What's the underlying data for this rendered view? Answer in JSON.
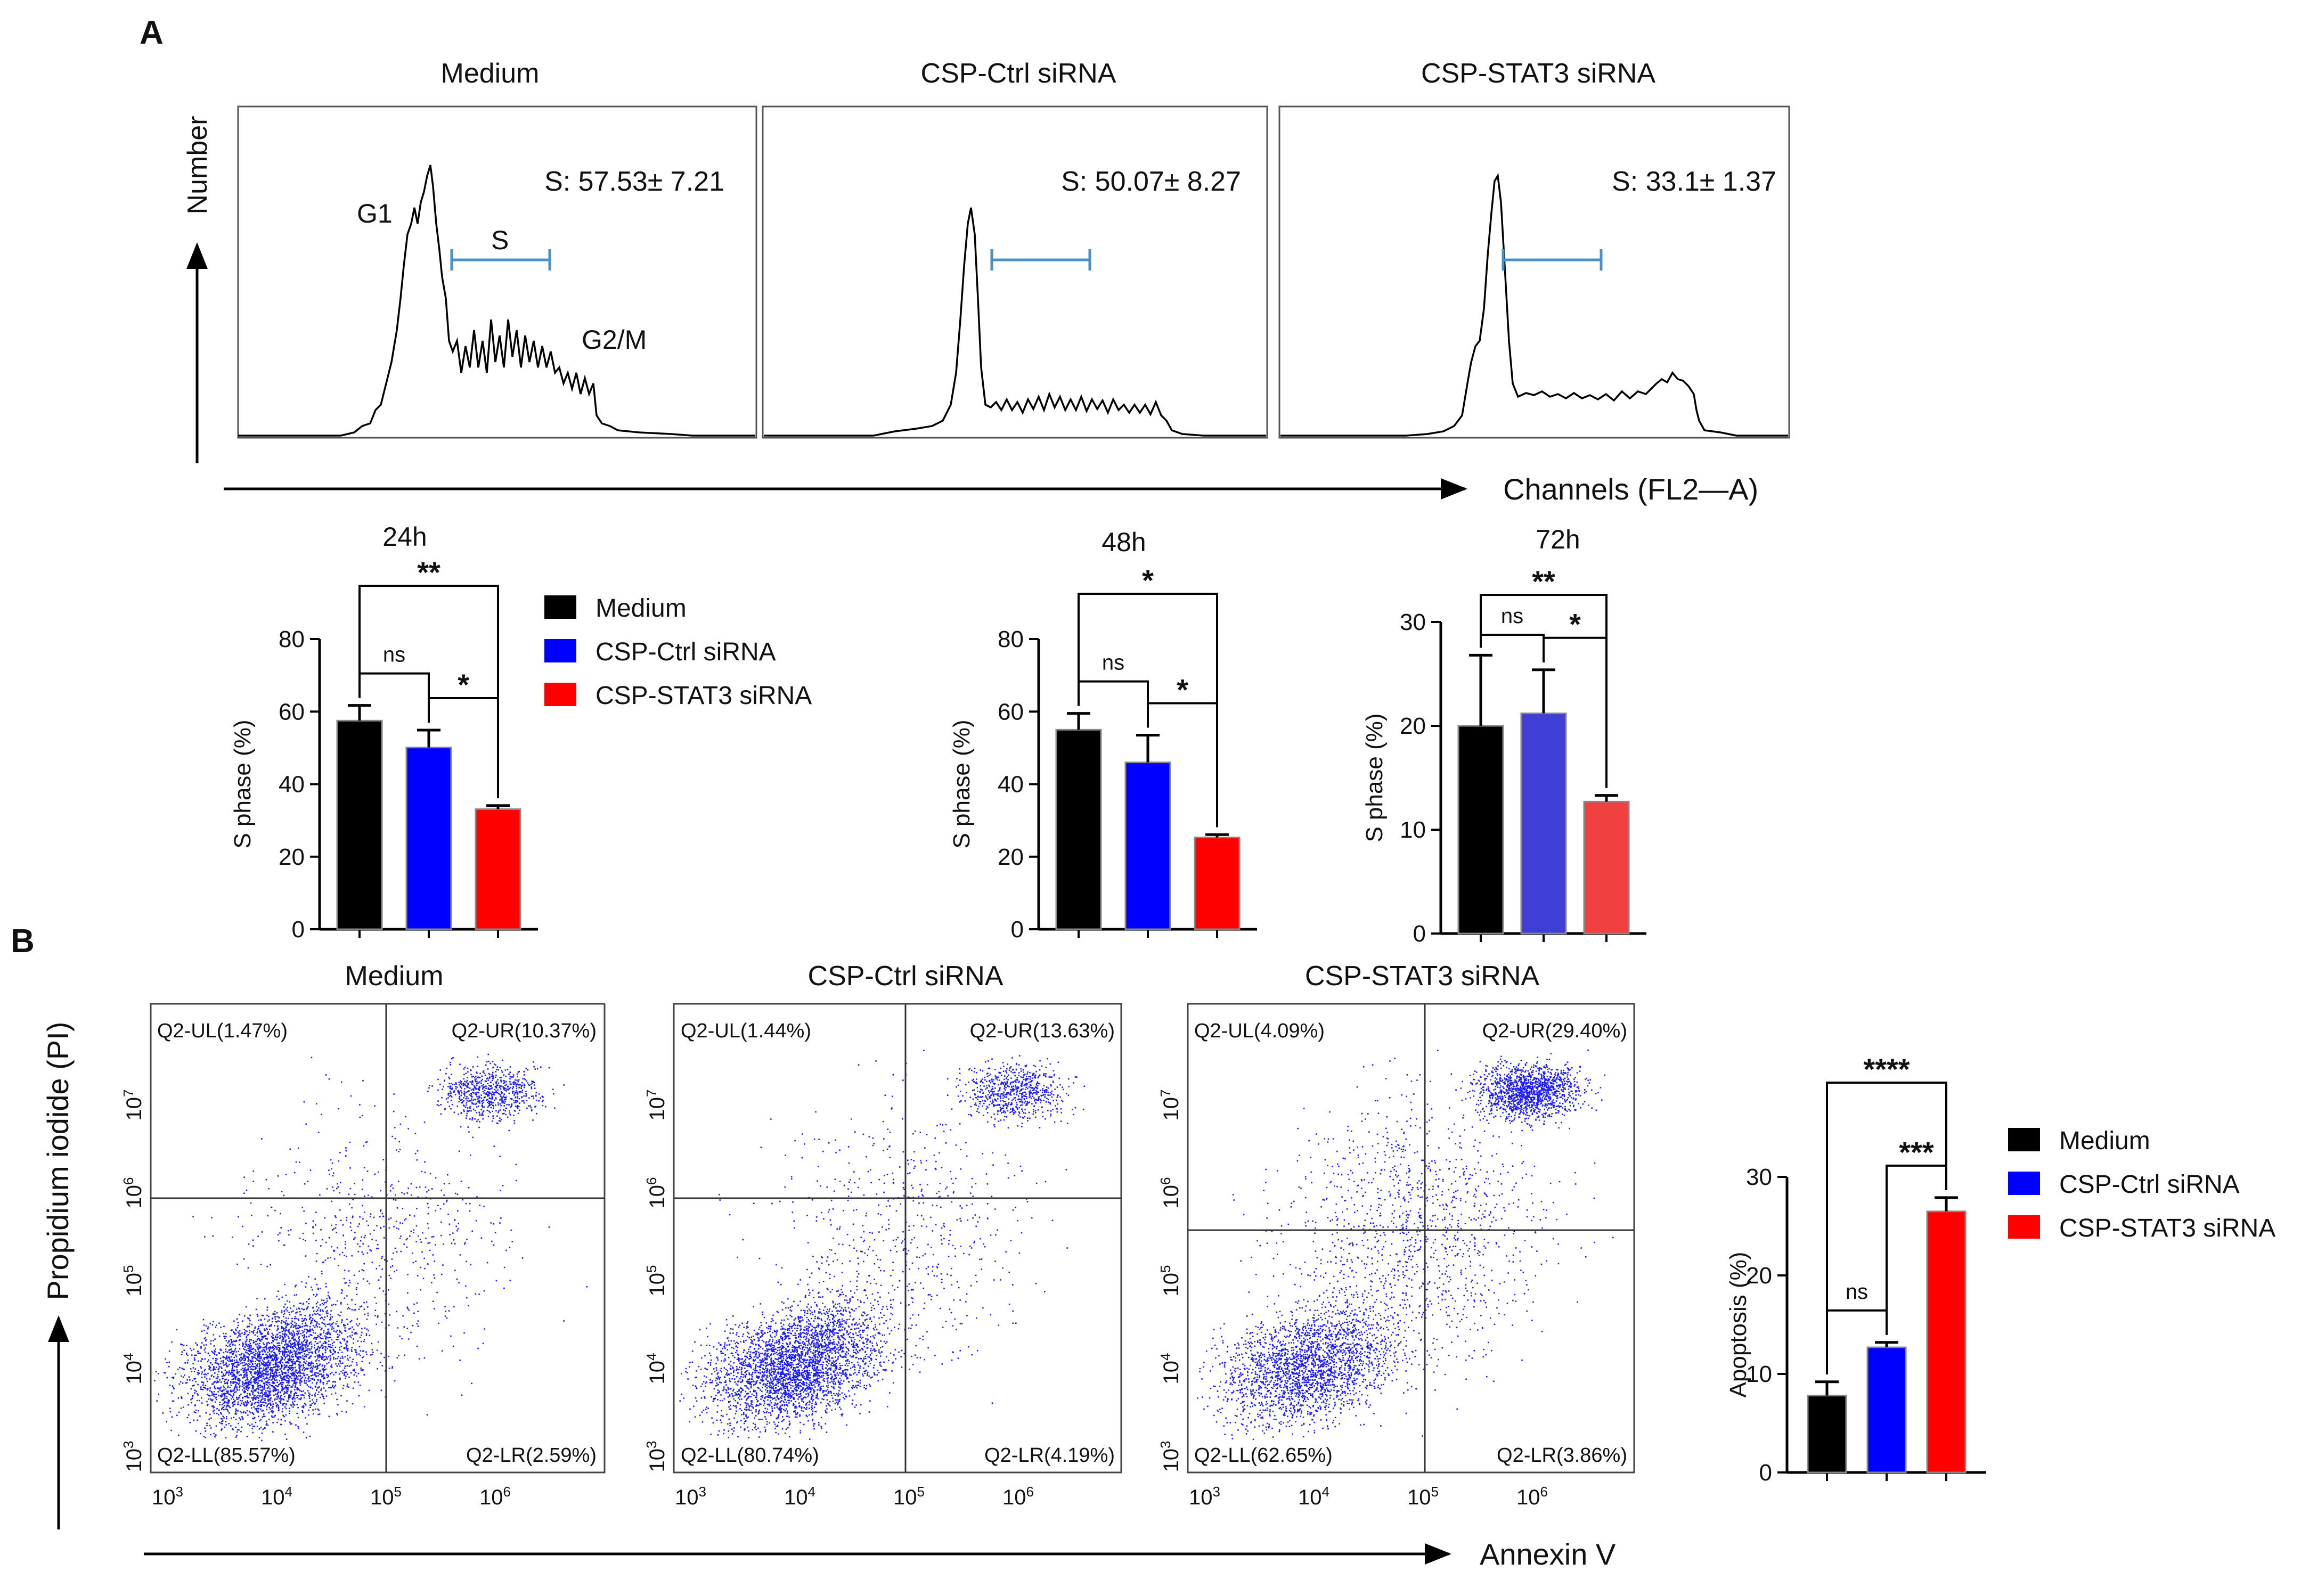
{
  "panel_a": {
    "label": "A",
    "y_axis_label": "Number",
    "x_axis_label": "Channels (FL2—A)",
    "histograms": [
      {
        "title": "Medium",
        "s_text": "S: 57.53± 7.21",
        "g1": "G1",
        "s": "S",
        "g2m": "G2/M"
      },
      {
        "title": "CSP-Ctrl siRNA",
        "s_text": "S: 50.07± 8.27"
      },
      {
        "title": "CSP-STAT3 siRNA",
        "s_text": "S: 33.1± 1.37"
      }
    ]
  },
  "panel_b": {
    "label": "B",
    "y_axis_label": "Propidium iodide (PI)",
    "x_axis_label": "Annexin V",
    "exponents": [
      "3",
      "4",
      "5",
      "6",
      "7"
    ],
    "dotplots": [
      {
        "title": "Medium",
        "ul": "Q2-UL(1.47%)",
        "ur": "Q2-UR(10.37%)",
        "ll": "Q2-LL(85.57%)",
        "lr": "Q2-LR(2.59%)"
      },
      {
        "title": "CSP-Ctrl siRNA",
        "ul": "Q2-UL(1.44%)",
        "ur": "Q2-UR(13.63%)",
        "ll": "Q2-LL(80.74%)",
        "lr": "Q2-LR(4.19%)"
      },
      {
        "title": "CSP-STAT3 siRNA",
        "ul": "Q2-UL(4.09%)",
        "ur": "Q2-UR(29.40%)",
        "ll": "Q2-LL(62.65%)",
        "lr": "Q2-LR(3.86%)"
      }
    ]
  },
  "legend": {
    "items": [
      {
        "label": "Medium",
        "color": "#000000"
      },
      {
        "label": "CSP-Ctrl siRNA",
        "color": "#0000ff"
      },
      {
        "label": "CSP-STAT3 siRNA",
        "color": "#ff0000"
      }
    ]
  },
  "chart_data": [
    {
      "type": "bar",
      "title": "24h",
      "ylabel": "S phase (%)",
      "ylim": [
        0,
        80
      ],
      "yticks": [
        0,
        20,
        40,
        60,
        80
      ],
      "categories": [
        "Medium",
        "CSP-Ctrl siRNA",
        "CSP-STAT3 siRNA"
      ],
      "values": [
        57.5,
        50.1,
        33.1
      ],
      "errors": [
        4.2,
        4.8,
        1.0
      ],
      "colors": [
        "#000000",
        "#0000ff",
        "#ff0000"
      ],
      "significance": [
        {
          "from": 0,
          "to": 1,
          "label": "ns"
        },
        {
          "from": 1,
          "to": 2,
          "label": "*"
        },
        {
          "from": 0,
          "to": 2,
          "label": "**"
        }
      ]
    },
    {
      "type": "bar",
      "title": "48h",
      "ylabel": "S phase (%)",
      "ylim": [
        0,
        80
      ],
      "yticks": [
        0,
        20,
        40,
        60,
        80
      ],
      "categories": [
        "Medium",
        "CSP-Ctrl siRNA",
        "CSP-STAT3 siRNA"
      ],
      "values": [
        55.0,
        46.0,
        25.3
      ],
      "errors": [
        4.5,
        7.5,
        0.8
      ],
      "colors": [
        "#000000",
        "#0000ff",
        "#ff0000"
      ],
      "significance": [
        {
          "from": 0,
          "to": 1,
          "label": "ns"
        },
        {
          "from": 1,
          "to": 2,
          "label": "*"
        },
        {
          "from": 0,
          "to": 2,
          "label": "*"
        }
      ]
    },
    {
      "type": "bar",
      "title": "72h",
      "ylabel": "S phase (%)",
      "ylim": [
        0,
        30
      ],
      "yticks": [
        0,
        10,
        20,
        30
      ],
      "categories": [
        "Medium",
        "CSP-Ctrl siRNA",
        "CSP-STAT3 siRNA"
      ],
      "values": [
        20.0,
        21.2,
        12.7
      ],
      "errors": [
        6.8,
        4.2,
        0.6
      ],
      "colors": [
        "#000000",
        "#3f3fd5",
        "#f04040"
      ],
      "significance": [
        {
          "from": 0,
          "to": 1,
          "label": "ns"
        },
        {
          "from": 1,
          "to": 2,
          "label": "*"
        },
        {
          "from": 0,
          "to": 2,
          "label": "**"
        }
      ]
    },
    {
      "type": "bar",
      "title": "",
      "ylabel": "Apoptosis (%)",
      "ylim": [
        0,
        30
      ],
      "yticks": [
        0,
        10,
        20,
        30
      ],
      "categories": [
        "Medium",
        "CSP-Ctrl siRNA",
        "CSP-STAT3 siRNA"
      ],
      "values": [
        7.8,
        12.7,
        26.5
      ],
      "errors": [
        1.4,
        0.5,
        1.4
      ],
      "colors": [
        "#000000",
        "#0000ff",
        "#ff0000"
      ],
      "significance": [
        {
          "from": 0,
          "to": 1,
          "label": "ns"
        },
        {
          "from": 1,
          "to": 2,
          "label": "***"
        },
        {
          "from": 0,
          "to": 2,
          "label": "****"
        }
      ]
    }
  ]
}
